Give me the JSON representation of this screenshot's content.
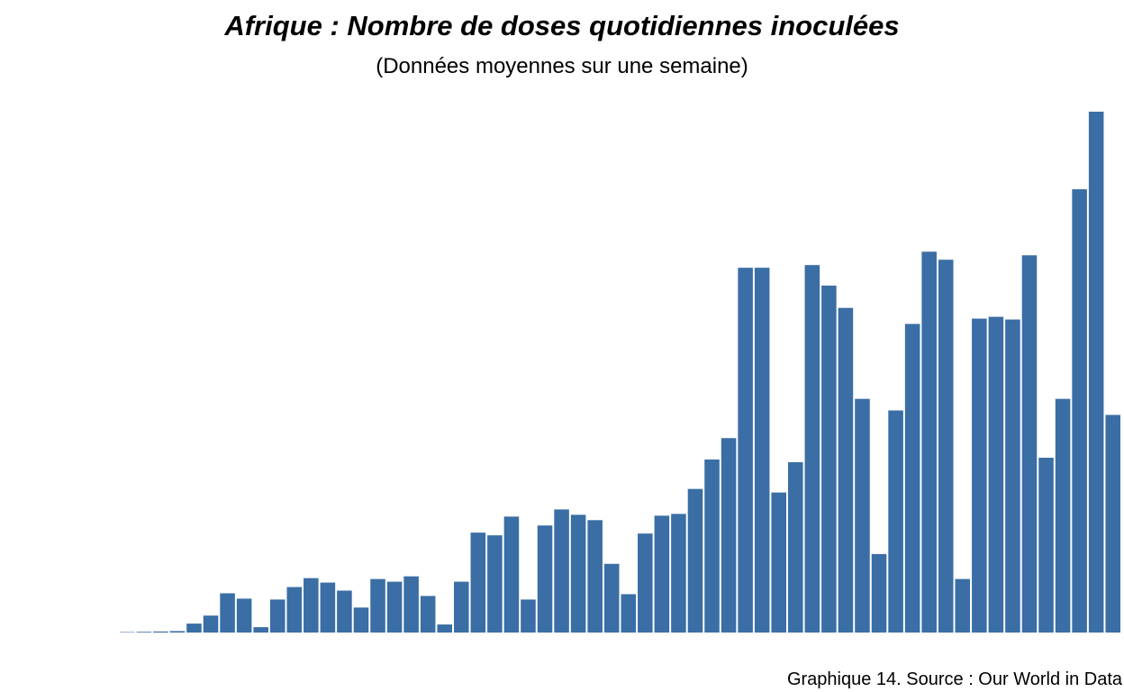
{
  "chart_data": {
    "type": "bar",
    "title": "Afrique : Nombre de doses quotidiennes inoculées",
    "subtitle": "(Données moyennes sur une semaine)",
    "caption": "Graphique 14. Source : Our World in Data",
    "xlabel": "",
    "ylabel": "",
    "grid": false,
    "legend": "none",
    "bar_color": "#3a6ea5",
    "ylim": [
      0,
      590
    ],
    "values": [
      0.5,
      0.8,
      1.2,
      1.6,
      10,
      19,
      44,
      38,
      6,
      37,
      51,
      61,
      56,
      47,
      28,
      60,
      57,
      63,
      41,
      9,
      57,
      112,
      109,
      130,
      37,
      120,
      138,
      132,
      126,
      77,
      43,
      111,
      131,
      133,
      161,
      194,
      218,
      409,
      409,
      157,
      191,
      412,
      389,
      364,
      262,
      88,
      249,
      346,
      427,
      418,
      60,
      352,
      354,
      351,
      423,
      196,
      262,
      497,
      584,
      244
    ]
  }
}
